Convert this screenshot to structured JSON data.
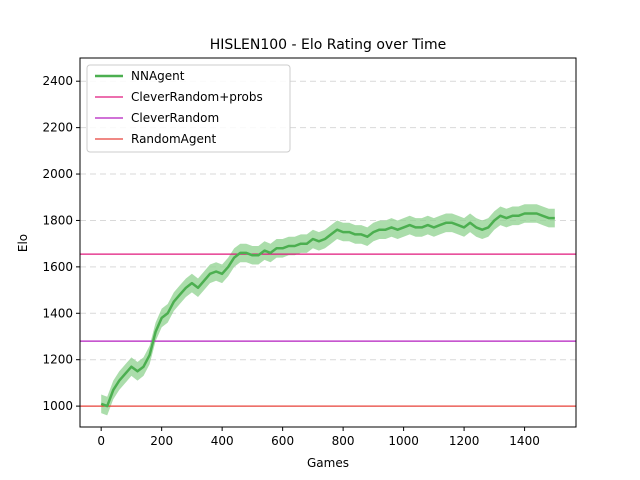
{
  "chart_data": {
    "type": "line",
    "title": "HISLEN100 - Elo Rating over Time",
    "xlabel": "Games",
    "ylabel": "Elo",
    "xlim": [
      -70,
      1570
    ],
    "ylim": [
      910,
      2500
    ],
    "xticks": [
      0,
      200,
      400,
      600,
      800,
      1000,
      1200,
      1400
    ],
    "yticks": [
      1000,
      1200,
      1400,
      1600,
      1800,
      2000,
      2200,
      2400
    ],
    "grid": "y-dashed",
    "legend_position": "top-left",
    "series": [
      {
        "name": "NNAgent",
        "color": "#4caf50",
        "band_color": "#8fd18f",
        "x": [
          0,
          20,
          40,
          60,
          80,
          100,
          120,
          140,
          160,
          180,
          200,
          220,
          240,
          260,
          280,
          300,
          320,
          340,
          360,
          380,
          400,
          420,
          440,
          460,
          480,
          500,
          520,
          540,
          560,
          580,
          600,
          620,
          640,
          660,
          680,
          700,
          720,
          740,
          760,
          780,
          800,
          820,
          840,
          860,
          880,
          900,
          920,
          940,
          960,
          980,
          1000,
          1020,
          1040,
          1060,
          1080,
          1100,
          1120,
          1140,
          1160,
          1180,
          1200,
          1220,
          1240,
          1260,
          1280,
          1300,
          1320,
          1340,
          1360,
          1380,
          1400,
          1420,
          1440,
          1460,
          1480,
          1500
        ],
        "y": [
          1010,
          1000,
          1070,
          1110,
          1140,
          1170,
          1150,
          1170,
          1220,
          1320,
          1380,
          1400,
          1450,
          1480,
          1510,
          1530,
          1510,
          1540,
          1570,
          1580,
          1570,
          1600,
          1640,
          1660,
          1660,
          1650,
          1650,
          1670,
          1660,
          1680,
          1680,
          1690,
          1690,
          1700,
          1700,
          1720,
          1710,
          1720,
          1740,
          1760,
          1750,
          1750,
          1740,
          1740,
          1730,
          1750,
          1760,
          1760,
          1770,
          1760,
          1770,
          1780,
          1770,
          1770,
          1780,
          1770,
          1780,
          1790,
          1790,
          1780,
          1770,
          1790,
          1770,
          1760,
          1770,
          1800,
          1820,
          1810,
          1820,
          1820,
          1830,
          1830,
          1830,
          1820,
          1810,
          1810
        ],
        "band": 40
      },
      {
        "name": "CleverRandom+probs",
        "color": "#e0197d",
        "hline": 1655
      },
      {
        "name": "CleverRandom",
        "color": "#b41ebf",
        "hline": 1280
      },
      {
        "name": "RandomAgent",
        "color": "#e8423a",
        "hline": 1000
      }
    ]
  }
}
